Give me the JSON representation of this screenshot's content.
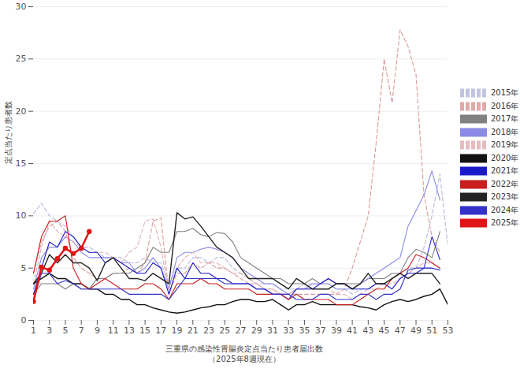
{
  "chart_data": {
    "type": "line",
    "xlabel": "三重県の感染性胃腸炎定点当たり患者届出数",
    "subtitle": "（2025年8週現在）",
    "ylabel": "定点当たり患者数",
    "x": [
      1,
      2,
      3,
      4,
      5,
      6,
      7,
      8,
      9,
      10,
      11,
      12,
      13,
      14,
      15,
      16,
      17,
      18,
      19,
      20,
      21,
      22,
      23,
      24,
      25,
      26,
      27,
      28,
      29,
      30,
      31,
      32,
      33,
      34,
      35,
      36,
      37,
      38,
      39,
      40,
      41,
      42,
      43,
      44,
      45,
      46,
      47,
      48,
      49,
      50,
      51,
      52,
      53
    ],
    "xlim": [
      1,
      53
    ],
    "xticks": [
      1,
      3,
      5,
      7,
      9,
      11,
      13,
      15,
      17,
      19,
      21,
      23,
      25,
      27,
      29,
      31,
      33,
      35,
      37,
      39,
      41,
      43,
      45,
      47,
      49,
      51,
      53
    ],
    "ylim": [
      0,
      30
    ],
    "yticks": [
      0,
      5,
      10,
      15,
      20,
      25,
      30
    ],
    "grid": true,
    "legend": "right",
    "series": [
      {
        "name": "2015年",
        "color": "#b8b8dc",
        "line_style": "dashed",
        "values": [
          10.2,
          11.2,
          10,
          9.5,
          9,
          8,
          7,
          7,
          6.5,
          6,
          6,
          6,
          5.5,
          5.5,
          6,
          5.5,
          5.5,
          3.5,
          5,
          5,
          6,
          6,
          5.5,
          6,
          6,
          5,
          4.5,
          4,
          3.5,
          3.5,
          3.5,
          3,
          3,
          3,
          3.5,
          3.5,
          3.5,
          3.5,
          3,
          3,
          2.5,
          3,
          3,
          3.5,
          3.5,
          4,
          4.5,
          5,
          5,
          7,
          10,
          14,
          7
        ]
      },
      {
        "name": "2016年",
        "color": "#dc9a9a",
        "line_style": "dashed",
        "values": [
          4.5,
          7.5,
          9,
          9.5,
          8.5,
          6,
          5,
          4.5,
          4,
          4,
          4.5,
          4.5,
          5,
          4.5,
          5.5,
          9.5,
          9.8,
          2.5,
          4.5,
          4.5,
          5.5,
          5,
          5.5,
          5,
          5,
          4.5,
          4,
          3.5,
          3.5,
          3,
          3,
          2.5,
          2.5,
          2.5,
          2.5,
          2.5,
          2.5,
          2.5,
          2.5,
          3,
          5,
          7.5,
          10,
          17,
          25,
          20.8,
          27.8,
          26.2,
          23.5,
          12,
          8,
          6.5,
          null
        ]
      },
      {
        "name": "2017年",
        "color": "#808080",
        "line_style": "solid",
        "values": [
          2.5,
          3.5,
          3.5,
          3.5,
          3,
          3.5,
          3,
          3,
          4,
          4,
          4.5,
          4.5,
          4.5,
          5,
          5.5,
          7,
          6.5,
          6.5,
          8.5,
          8.5,
          8.8,
          8.2,
          8,
          8.4,
          8.3,
          7.5,
          6,
          5.5,
          5,
          4.5,
          4,
          4,
          3.5,
          3.5,
          3.5,
          4,
          3.5,
          4,
          3.5,
          3.5,
          3.5,
          3.5,
          4,
          4,
          4,
          4.5,
          4.5,
          6,
          6.8,
          6.5,
          6,
          8.5,
          null
        ]
      },
      {
        "name": "2018年",
        "color": "#8a8ae6",
        "line_style": "solid",
        "values": [
          3,
          6,
          7,
          7,
          8,
          7.5,
          6.5,
          6,
          6,
          6,
          6,
          5.5,
          5.5,
          4.5,
          5,
          6,
          5,
          3,
          6,
          6.5,
          6.5,
          6.8,
          7,
          6.8,
          6.5,
          6,
          5,
          4.5,
          4,
          3.5,
          3.5,
          3,
          2.5,
          3,
          3,
          3.5,
          3.5,
          3.5,
          3,
          3,
          3,
          3.5,
          4,
          4.5,
          5,
          5.5,
          6,
          9,
          10.5,
          12,
          14.3,
          11.5,
          null
        ]
      },
      {
        "name": "2019年",
        "color": "#e2b0b6",
        "line_style": "dashed",
        "values": [
          3.5,
          7,
          9.5,
          8.5,
          8,
          7.5,
          7,
          6.5,
          6.5,
          6.5,
          6,
          5.5,
          6.5,
          7,
          9.5,
          9.7,
          7,
          2.5,
          5,
          6,
          6.5,
          5.5,
          5.5,
          5.5,
          5,
          4.5,
          4.5,
          4,
          3.5,
          3,
          3,
          2.5,
          2.5,
          3,
          3,
          3,
          3,
          3,
          2.5,
          2.5,
          2,
          2.5,
          3,
          3,
          3.5,
          3.5,
          4,
          4.5,
          5,
          5.5,
          5.5,
          5,
          null
        ]
      },
      {
        "name": "2020年",
        "color": "#111111",
        "line_style": "solid",
        "values": [
          3.5,
          4,
          4.5,
          4,
          4,
          3.5,
          3.5,
          3,
          3,
          2.5,
          2.5,
          2,
          2,
          1.5,
          1.5,
          1.2,
          1,
          0.8,
          0.7,
          0.8,
          1,
          1.2,
          1.3,
          1.5,
          1.5,
          1.8,
          2,
          2,
          1.8,
          1.8,
          2,
          1.5,
          1,
          1.5,
          1.5,
          1.8,
          1.5,
          1.5,
          1.5,
          1.5,
          1.5,
          1.3,
          1.2,
          1,
          1.5,
          1.8,
          2,
          1.8,
          2,
          2.3,
          2.5,
          3,
          1.5
        ]
      },
      {
        "name": "2021年",
        "color": "#1a1ac8",
        "line_style": "solid",
        "values": [
          2.5,
          5,
          7.5,
          7,
          8.5,
          8,
          7,
          6.5,
          6.5,
          5.5,
          6,
          5.5,
          5,
          4.5,
          4.5,
          5.5,
          5,
          2.5,
          5,
          4,
          5.5,
          4.5,
          4.5,
          4,
          4,
          3.5,
          3.5,
          3.5,
          3,
          3,
          2.5,
          2.5,
          2,
          3,
          3,
          3,
          3.5,
          4,
          3.5,
          3.5,
          3,
          3,
          3,
          3.5,
          3.5,
          3,
          4,
          4.5,
          4.5,
          5,
          5,
          4.8,
          null
        ]
      },
      {
        "name": "2022年",
        "color": "#c81e1e",
        "line_style": "solid",
        "values": [
          4.5,
          8,
          9.5,
          9.5,
          10,
          5,
          3.5,
          3,
          3.5,
          4,
          3.5,
          3,
          3,
          3,
          3.5,
          3.5,
          3,
          2,
          3.5,
          3.5,
          3.5,
          4,
          3.5,
          3.5,
          3,
          3,
          3,
          3,
          2.5,
          2.5,
          2.5,
          2.5,
          2,
          2.5,
          2,
          2,
          2,
          2,
          1.5,
          1.5,
          1.5,
          2,
          2.5,
          3,
          3,
          4,
          4.5,
          5,
          6.3,
          6,
          5.5,
          5,
          null
        ]
      },
      {
        "name": "2023年",
        "color": "#222222",
        "line_style": "solid",
        "values": [
          3.5,
          4.5,
          6.3,
          5.5,
          6.3,
          5.5,
          5.5,
          5,
          3.8,
          5.5,
          6,
          5,
          4,
          4,
          3.8,
          4.5,
          4,
          3.5,
          10.3,
          9.7,
          9.9,
          9,
          8,
          7,
          6.5,
          6,
          5,
          4,
          4,
          4,
          4,
          3.5,
          3,
          4,
          3.5,
          3,
          3,
          3,
          3.5,
          3.5,
          3,
          3.5,
          4.5,
          3.5,
          3.5,
          4,
          4.5,
          4,
          4.5,
          4.5,
          4.5,
          3.5,
          null
        ]
      },
      {
        "name": "2024年",
        "color": "#3232c8",
        "line_style": "solid",
        "values": [
          2,
          4.5,
          4.5,
          3.5,
          3.8,
          3.5,
          3,
          3,
          3,
          3,
          3,
          3,
          2.5,
          2.5,
          2.5,
          2.5,
          2.5,
          2,
          3,
          4,
          4,
          4,
          4,
          4,
          3.5,
          3.5,
          3.5,
          3.5,
          3,
          3,
          2.5,
          2.5,
          2.5,
          2,
          2,
          2,
          2.5,
          2.5,
          2,
          2,
          2,
          2.5,
          2.5,
          2,
          2.5,
          2.5,
          3,
          4.8,
          5,
          5,
          8,
          5.8,
          null
        ]
      },
      {
        "name": "2025年",
        "color": "#e01414",
        "line_style": "solid",
        "marker": "circle",
        "values": [
          1.8,
          5.1,
          4.8,
          5.9,
          6.9,
          6.4,
          6.9,
          8.5,
          null,
          null,
          null,
          null,
          null,
          null,
          null,
          null,
          null,
          null,
          null,
          null,
          null,
          null,
          null,
          null,
          null,
          null,
          null,
          null,
          null,
          null,
          null,
          null,
          null,
          null,
          null,
          null,
          null,
          null,
          null,
          null,
          null,
          null,
          null,
          null,
          null,
          null,
          null,
          null,
          null,
          null,
          null,
          null,
          null
        ]
      }
    ]
  }
}
